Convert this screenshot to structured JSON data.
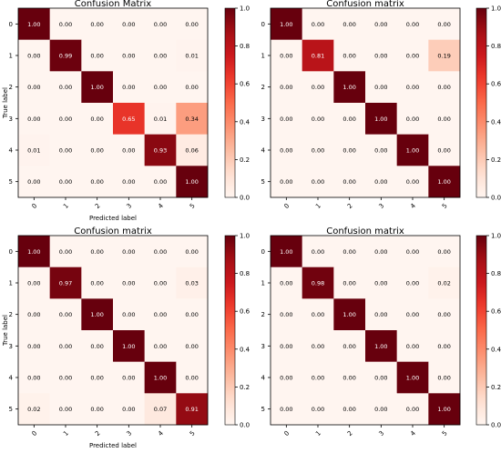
{
  "chart_data": [
    {
      "type": "heatmap",
      "title": "Confusion Matrix",
      "xlabel": "Predicted label",
      "ylabel": "True label",
      "x_ticks": [
        "0",
        "1",
        "2",
        "3",
        "4",
        "5"
      ],
      "y_ticks": [
        "0",
        "1",
        "2",
        "3",
        "4",
        "5"
      ],
      "values": [
        [
          1.0,
          0.0,
          0.0,
          0.0,
          0.0,
          0.0
        ],
        [
          0.0,
          0.99,
          0.0,
          0.0,
          0.0,
          0.01
        ],
        [
          0.0,
          0.0,
          1.0,
          0.0,
          0.0,
          0.0
        ],
        [
          0.0,
          0.0,
          0.0,
          0.65,
          0.01,
          0.34
        ],
        [
          0.01,
          0.0,
          0.0,
          0.0,
          0.93,
          0.06
        ],
        [
          0.0,
          0.0,
          0.0,
          0.0,
          0.0,
          1.0
        ]
      ],
      "colorbar_ticks": [
        "0.0",
        "0.2",
        "0.4",
        "0.6",
        "0.8",
        "1.0"
      ],
      "value_range": [
        0,
        1
      ],
      "colormap": "Reds"
    },
    {
      "type": "heatmap",
      "title": "Confusion matrix",
      "xlabel": "",
      "ylabel": "",
      "x_ticks": [
        "0",
        "1",
        "2",
        "3",
        "4",
        "5"
      ],
      "y_ticks": [
        "0",
        "1",
        "2",
        "3",
        "4",
        "5"
      ],
      "values": [
        [
          1.0,
          0.0,
          0.0,
          0.0,
          0.0,
          0.0
        ],
        [
          0.0,
          0.81,
          0.0,
          0.0,
          0.0,
          0.19
        ],
        [
          0.0,
          0.0,
          1.0,
          0.0,
          0.0,
          0.0
        ],
        [
          0.0,
          0.0,
          0.0,
          1.0,
          0.0,
          0.0
        ],
        [
          0.0,
          0.0,
          0.0,
          0.0,
          1.0,
          0.0
        ],
        [
          0.0,
          0.0,
          0.0,
          0.0,
          0.0,
          1.0
        ]
      ],
      "colorbar_ticks": [
        "0.0",
        "0.2",
        "0.4",
        "0.6",
        "0.8",
        "1.0"
      ],
      "value_range": [
        0,
        1
      ],
      "colormap": "Reds"
    },
    {
      "type": "heatmap",
      "title": "Confusion matrix",
      "xlabel": "Predicted label",
      "ylabel": "True label",
      "x_ticks": [
        "0",
        "1",
        "2",
        "3",
        "4",
        "5"
      ],
      "y_ticks": [
        "0",
        "1",
        "2",
        "3",
        "4",
        "5"
      ],
      "values": [
        [
          1.0,
          0.0,
          0.0,
          0.0,
          0.0,
          0.0
        ],
        [
          0.0,
          0.97,
          0.0,
          0.0,
          0.0,
          0.03
        ],
        [
          0.0,
          0.0,
          1.0,
          0.0,
          0.0,
          0.0
        ],
        [
          0.0,
          0.0,
          0.0,
          1.0,
          0.0,
          0.0
        ],
        [
          0.0,
          0.0,
          0.0,
          0.0,
          1.0,
          0.0
        ],
        [
          0.02,
          0.0,
          0.0,
          0.0,
          0.07,
          0.91
        ]
      ],
      "colorbar_ticks": [
        "0.0",
        "0.2",
        "0.4",
        "0.6",
        "0.8",
        "1.0"
      ],
      "value_range": [
        0,
        1
      ],
      "colormap": "Reds"
    },
    {
      "type": "heatmap",
      "title": "Confusion matrix",
      "xlabel": "",
      "ylabel": "",
      "x_ticks": [
        "0",
        "1",
        "2",
        "3",
        "4",
        "5"
      ],
      "y_ticks": [
        "0",
        "1",
        "2",
        "3",
        "4",
        "5"
      ],
      "values": [
        [
          1.0,
          0.0,
          0.0,
          0.0,
          0.0,
          0.0
        ],
        [
          0.0,
          0.98,
          0.0,
          0.0,
          0.0,
          0.02
        ],
        [
          0.0,
          0.0,
          1.0,
          0.0,
          0.0,
          0.0
        ],
        [
          0.0,
          0.0,
          0.0,
          1.0,
          0.0,
          0.0
        ],
        [
          0.0,
          0.0,
          0.0,
          0.0,
          1.0,
          0.0
        ],
        [
          0.0,
          0.0,
          0.0,
          0.0,
          0.0,
          1.0
        ]
      ],
      "colorbar_ticks": [
        "0.0",
        "0.2",
        "0.4",
        "0.6",
        "0.8",
        "1.0"
      ],
      "value_range": [
        0,
        1
      ],
      "colormap": "Reds"
    }
  ]
}
